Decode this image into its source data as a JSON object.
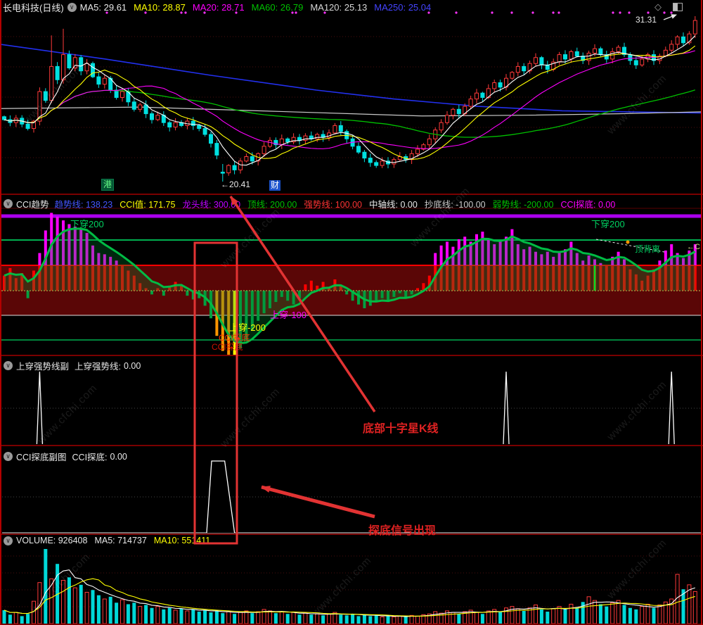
{
  "window": {
    "title": "长电科技(日线)"
  },
  "main_header": {
    "title": "长电科技(日线)",
    "mas": [
      {
        "label": "MA5:",
        "value": "29.61",
        "color": "#e8e8e8"
      },
      {
        "label": "MA10:",
        "value": "28.87",
        "color": "#ffff00"
      },
      {
        "label": "MA20:",
        "value": "28.71",
        "color": "#ff00ff"
      },
      {
        "label": "MA60:",
        "value": "26.79",
        "color": "#00c000"
      },
      {
        "label": "MA120:",
        "value": "25.13",
        "color": "#d8d8d8"
      },
      {
        "label": "MA250:",
        "value": "25.04",
        "color": "#4444ff"
      }
    ]
  },
  "icons": {
    "chevron_circle": "∨",
    "diamond": "◇",
    "half_square": "page-icon"
  },
  "panels": {
    "cci": {
      "name": "CCI趋势",
      "fields": [
        {
          "label": "趋势线:",
          "value": "138.23",
          "color": "#4455ff"
        },
        {
          "label": "CCI值:",
          "value": "171.75",
          "color": "#ffff00"
        },
        {
          "label": "龙头线:",
          "value": "300.00",
          "color": "#c000ff"
        },
        {
          "label": "顶线:",
          "value": "200.00",
          "color": "#00c000"
        },
        {
          "label": "强势线:",
          "value": "100.00",
          "color": "#ff3333"
        },
        {
          "label": "中轴线:",
          "value": "0.00",
          "color": "#e8e8e8"
        },
        {
          "label": "抄底线:",
          "value": "-100.00",
          "color": "#cccccc"
        },
        {
          "label": "弱势线:",
          "value": "-200.00",
          "color": "#00c000"
        },
        {
          "label": "CCI探底:",
          "value": "0.00",
          "color": "#ff00ff"
        }
      ],
      "labels": {
        "down200_left": "下穿200",
        "down200_right": "下穿200",
        "up100": "上穿-100",
        "up200": "上穿-200",
        "tandi1": "CCI探底",
        "tandi2": "CCI探底",
        "divergence": "顶背离",
        "right_edge": "←C"
      }
    },
    "p3": {
      "name": "上穿强势线副",
      "field_label": "上穿强势线:",
      "field_value": "0.00"
    },
    "p4": {
      "name": "CCI探底副图",
      "field_label": "CCI探底:",
      "field_value": "0.00"
    },
    "volume": {
      "fields": [
        {
          "label": "VOLUME:",
          "value": "926408",
          "color": "#e8e8e8"
        },
        {
          "label": "MA5:",
          "value": "714737",
          "color": "#e8e8e8"
        },
        {
          "label": "MA10:",
          "value": "551411",
          "color": "#ffff00"
        }
      ]
    }
  },
  "annotations": {
    "text1": "底部十字星K线",
    "text2": "探底信号出现",
    "low_label": "←20.41",
    "high_label": "31.31",
    "marker_gang": "港",
    "marker_cai": "财",
    "watermark": "www.cfchi.com",
    "accent_red": "#e23333"
  },
  "chart_data": [
    {
      "type": "candlestick",
      "title": "长电科技(日线)",
      "ylim": [
        19.5,
        32.0
      ],
      "low_marker": 20.41,
      "last_price": 31.31,
      "ma_current": {
        "MA5": 29.61,
        "MA10": 28.87,
        "MA20": 28.71,
        "MA60": 26.79,
        "MA120": 25.13,
        "MA250": 25.04
      },
      "close": [
        24.6,
        24.4,
        24.7,
        24.3,
        24.0,
        24.5,
        26.5,
        25.9,
        28.2,
        27.3,
        29.0,
        28.1,
        28.8,
        27.9,
        28.4,
        27.5,
        27.0,
        27.4,
        26.6,
        26.1,
        26.5,
        25.8,
        25.3,
        25.6,
        25.0,
        24.6,
        24.9,
        24.4,
        24.1,
        24.4,
        24.2,
        24.5,
        24.2,
        24.0,
        23.6,
        23.0,
        22.2,
        21.0,
        21.5,
        21.2,
        21.8,
        22.1,
        21.8,
        22.3,
        22.8,
        23.2,
        22.9,
        23.3,
        23.1,
        23.4,
        23.2,
        23.5,
        23.3,
        23.6,
        23.4,
        23.7,
        24.2,
        23.8,
        23.3,
        22.8,
        22.4,
        22.0,
        21.7,
        21.5,
        21.8,
        21.6,
        21.9,
        22.1,
        21.9,
        22.3,
        22.6,
        22.9,
        23.3,
        23.9,
        24.4,
        24.9,
        25.3,
        25.0,
        25.5,
        26.0,
        26.4,
        26.1,
        26.7,
        27.1,
        26.8,
        27.4,
        27.8,
        28.2,
        27.9,
        28.4,
        28.8,
        28.3,
        28.0,
        28.5,
        29.0,
        28.7,
        29.2,
        28.9,
        28.6,
        29.1,
        29.4,
        29.0,
        28.7,
        29.2,
        29.5,
        29.0,
        28.6,
        28.3,
        28.7,
        29.0,
        28.6,
        28.9,
        29.3,
        29.7,
        30.2,
        29.8,
        30.4,
        31.31
      ],
      "doji_index": 37,
      "high_overrides": {
        "8": 30.3,
        "10": 30.75,
        "117": 31.6
      },
      "ma120_path": [
        [
          0,
          25.35
        ],
        [
          200,
          25.45
        ],
        [
          400,
          25.15
        ],
        [
          600,
          24.85
        ],
        [
          750,
          24.9
        ],
        [
          880,
          25.0
        ],
        [
          999,
          25.13
        ]
      ],
      "ma250_path": [
        [
          0,
          29.7
        ],
        [
          150,
          28.7
        ],
        [
          300,
          27.6
        ],
        [
          450,
          26.6
        ],
        [
          560,
          26.0
        ],
        [
          680,
          25.5
        ],
        [
          800,
          25.2
        ],
        [
          999,
          25.05
        ]
      ],
      "event_dot_xs": [
        152,
        207,
        258,
        264,
        291,
        336,
        416,
        421,
        462,
        610,
        649,
        700,
        728,
        758,
        787,
        795,
        872,
        882,
        895,
        922,
        945,
        955
      ]
    },
    {
      "type": "bar",
      "name": "CCI趋势",
      "levels": {
        "龙头线": 300,
        "顶线": 200,
        "强势线": 100,
        "中轴线": 0,
        "抄底线": -100,
        "弱势线": -200
      },
      "values": [
        60,
        90,
        50,
        70,
        -30,
        80,
        150,
        240,
        310,
        295,
        280,
        265,
        255,
        245,
        230,
        180,
        150,
        145,
        135,
        120,
        100,
        80,
        60,
        30,
        10,
        -15,
        10,
        -20,
        20,
        35,
        25,
        -20,
        -35,
        -30,
        -60,
        -110,
        -180,
        -240,
        -270,
        -260,
        -230,
        -200,
        -160,
        -120,
        -90,
        -70,
        -45,
        -25,
        -40,
        -55,
        -30,
        25,
        40,
        20,
        35,
        15,
        45,
        20,
        -15,
        -40,
        -55,
        -70,
        -60,
        -45,
        -30,
        -45,
        -25,
        -10,
        -30,
        -15,
        10,
        30,
        60,
        150,
        180,
        195,
        175,
        205,
        215,
        195,
        225,
        235,
        205,
        185,
        195,
        215,
        245,
        185,
        165,
        175,
        155,
        145,
        155,
        135,
        150,
        165,
        195,
        150,
        120,
        140,
        125,
        110,
        100,
        135,
        155,
        125,
        85,
        65,
        40,
        60,
        85,
        120,
        160,
        185,
        150,
        130,
        160,
        185
      ],
      "highlight_orange": [
        36,
        37,
        38
      ],
      "highlight_yellow": [
        39
      ],
      "green_vline_index": 100
    },
    {
      "type": "spike",
      "name": "上穿强势线",
      "signal_indices": [
        6,
        85,
        113
      ],
      "current": 0
    },
    {
      "type": "spike",
      "name": "CCI探底",
      "signal_span": [
        35,
        39
      ],
      "current": 0
    },
    {
      "type": "bar",
      "name": "VOLUME",
      "current": 926408,
      "ma5": 714737,
      "ma10": 551411,
      "values": [
        0.18,
        0.12,
        0.15,
        0.1,
        0.13,
        0.3,
        0.55,
        1.0,
        0.6,
        0.8,
        0.58,
        0.62,
        0.48,
        0.52,
        0.42,
        0.45,
        0.38,
        0.33,
        0.36,
        0.28,
        0.32,
        0.26,
        0.28,
        0.23,
        0.25,
        0.21,
        0.23,
        0.19,
        0.21,
        0.18,
        0.2,
        0.17,
        0.19,
        0.16,
        0.18,
        0.15,
        0.17,
        0.14,
        0.16,
        0.13,
        0.15,
        0.17,
        0.14,
        0.16,
        0.19,
        0.17,
        0.14,
        0.16,
        0.13,
        0.15,
        0.12,
        0.14,
        0.12,
        0.13,
        0.11,
        0.13,
        0.15,
        0.12,
        0.11,
        0.13,
        0.1,
        0.12,
        0.1,
        0.11,
        0.09,
        0.1,
        0.09,
        0.1,
        0.09,
        0.11,
        0.1,
        0.12,
        0.13,
        0.16,
        0.14,
        0.17,
        0.15,
        0.13,
        0.16,
        0.18,
        0.15,
        0.13,
        0.17,
        0.19,
        0.16,
        0.21,
        0.23,
        0.2,
        0.17,
        0.21,
        0.25,
        0.19,
        0.16,
        0.2,
        0.23,
        0.19,
        0.26,
        0.21,
        0.29,
        0.36,
        0.31,
        0.26,
        0.23,
        0.28,
        0.31,
        0.25,
        0.21,
        0.19,
        0.23,
        0.26,
        0.21,
        0.25,
        0.29,
        0.33,
        0.66,
        0.46,
        0.52,
        0.43
      ]
    }
  ]
}
